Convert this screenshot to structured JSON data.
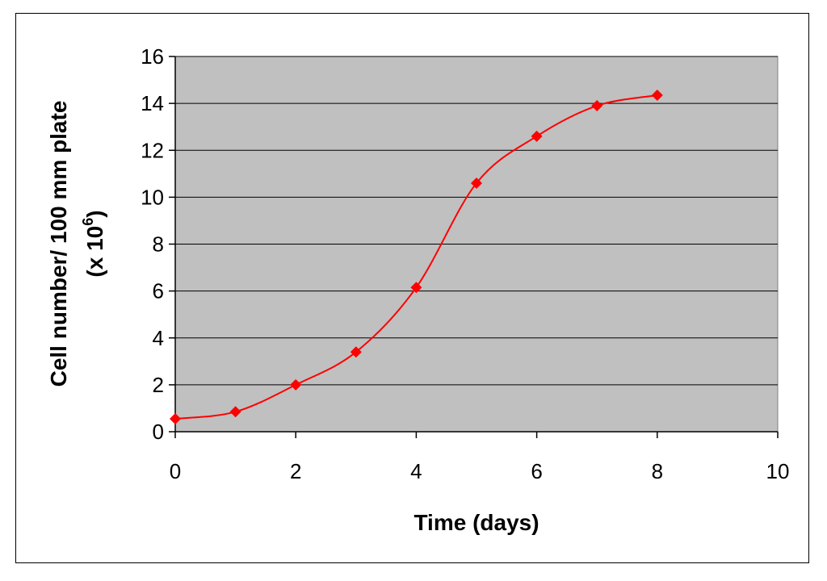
{
  "chart_data": {
    "type": "line",
    "xlabel": "Time (days)",
    "ylabel_line1": "Cell number/ 100 mm plate",
    "ylabel_line2_prefix": "(x 10",
    "ylabel_line2_exp": "6",
    "ylabel_line2_suffix": ")",
    "xlim": [
      0,
      10
    ],
    "ylim": [
      0,
      16
    ],
    "xticks": [
      0,
      2,
      4,
      6,
      8,
      10
    ],
    "yticks": [
      0,
      2,
      4,
      6,
      8,
      10,
      12,
      14,
      16
    ],
    "grid": "horizontal",
    "plot_background": "#c0c0c0",
    "series": [
      {
        "color": "#ff0000",
        "marker": "diamond",
        "smooth": true,
        "x": [
          0,
          1,
          2,
          3,
          4,
          5,
          6,
          7,
          8
        ],
        "y": [
          0.55,
          0.85,
          2.0,
          3.4,
          6.15,
          10.6,
          12.6,
          13.9,
          14.35
        ]
      }
    ]
  }
}
